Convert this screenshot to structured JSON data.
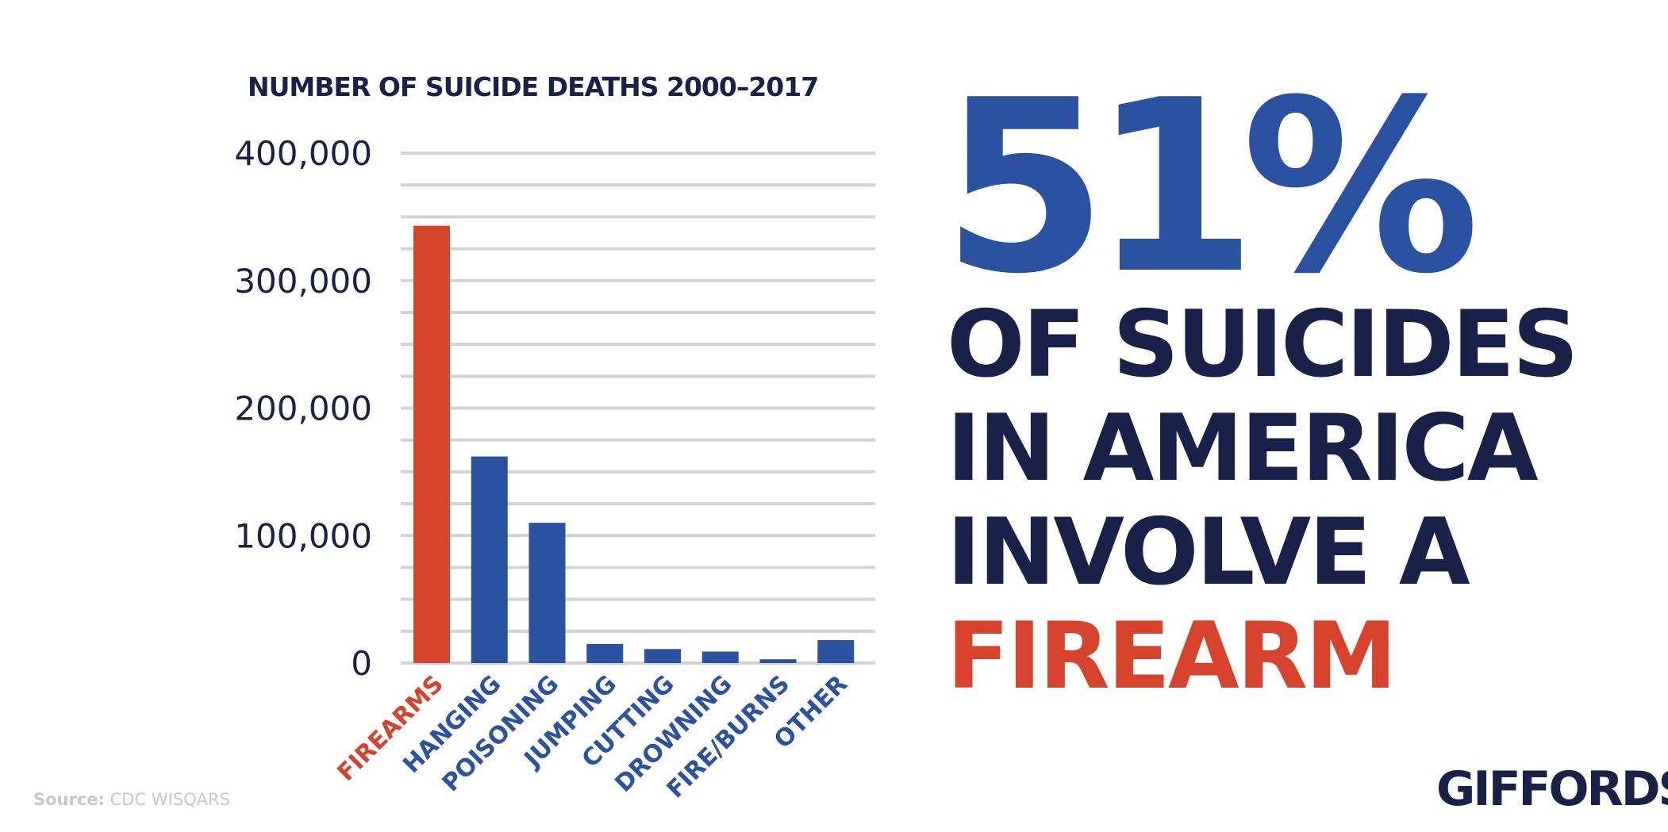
{
  "chart_data": {
    "type": "bar",
    "title": "NUMBER OF SUICIDE DEATHS 2000–2017",
    "categories": [
      "FIREARMS",
      "HANGING",
      "POISONING",
      "JUMPING",
      "CUTTING",
      "DROWNING",
      "FIRE/BURNS",
      "OTHER"
    ],
    "values": [
      343000,
      162000,
      110000,
      15000,
      11000,
      9000,
      3000,
      18000
    ],
    "highlight_category": "FIREARMS",
    "ylim": [
      0,
      400000
    ],
    "yticks": [
      "0",
      "100,000",
      "200,000",
      "300,000",
      "400,000"
    ],
    "ytick_values": [
      0,
      100000,
      200000,
      300000,
      400000
    ],
    "minor_grid_step": 25000,
    "grid": true,
    "colors": {
      "highlight": "#d6422c",
      "bars": "#2a52a0",
      "text": "#1a2148",
      "grid": "#d3d3d3"
    }
  },
  "headline": {
    "percent": "51%",
    "lines": [
      "OF SUICIDES",
      "IN AMERICA",
      "INVOLVE A"
    ],
    "emphasis": "FIREARM"
  },
  "source": {
    "label": "Source:",
    "text": "CDC WISQARS"
  },
  "logo": {
    "text": "GIFFORDS"
  }
}
